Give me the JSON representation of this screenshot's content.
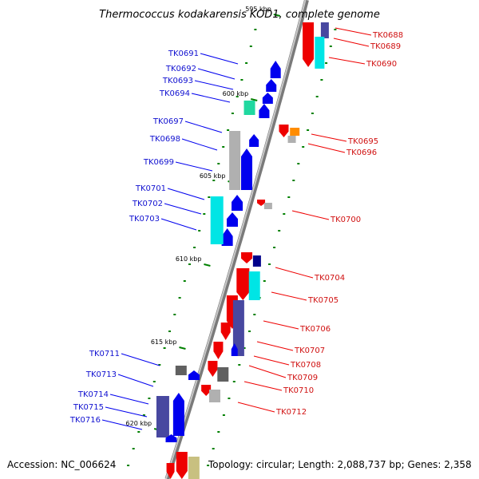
{
  "title": "Thermococcus kodakarensis KOD1, complete genome",
  "accession": "Accession: NC_006624",
  "topology": "Topology: circular; Length: 2,088,737 bp; Genes: 2,358",
  "ruler_labels": [
    "595 kbp",
    "600 kbp",
    "605 kbp",
    "610 kbp",
    "615 kbp",
    "620 kbp"
  ],
  "colors": {
    "forward": "#0000ee",
    "reverse": "#ee0000",
    "cyan": "#00e5e5",
    "teal": "#20d8a0",
    "slate": "#4848a0",
    "navy": "#00008b",
    "gray": "#b0b0b0",
    "darkgray": "#606060",
    "orange": "#ff8c00",
    "olive": "#c8c080",
    "tick": "#008000"
  },
  "left_genes": [
    {
      "label": "TK0691"
    },
    {
      "label": "TK0692"
    },
    {
      "label": "TK0693"
    },
    {
      "label": "TK0694"
    },
    {
      "label": "TK0697"
    },
    {
      "label": "TK0698"
    },
    {
      "label": "TK0699"
    },
    {
      "label": "TK0701"
    },
    {
      "label": "TK0702"
    },
    {
      "label": "TK0703"
    },
    {
      "label": "TK0711"
    },
    {
      "label": "TK0713"
    },
    {
      "label": "TK0714"
    },
    {
      "label": "TK0715"
    },
    {
      "label": "TK0716"
    }
  ],
  "right_genes": [
    {
      "label": "TK0688"
    },
    {
      "label": "TK0689"
    },
    {
      "label": "TK0690"
    },
    {
      "label": "TK0695"
    },
    {
      "label": "TK0696"
    },
    {
      "label": "TK0700"
    },
    {
      "label": "TK0704"
    },
    {
      "label": "TK0705"
    },
    {
      "label": "TK0706"
    },
    {
      "label": "TK0707"
    },
    {
      "label": "TK0708"
    },
    {
      "label": "TK0709"
    },
    {
      "label": "TK0710"
    },
    {
      "label": "TK0712"
    }
  ]
}
